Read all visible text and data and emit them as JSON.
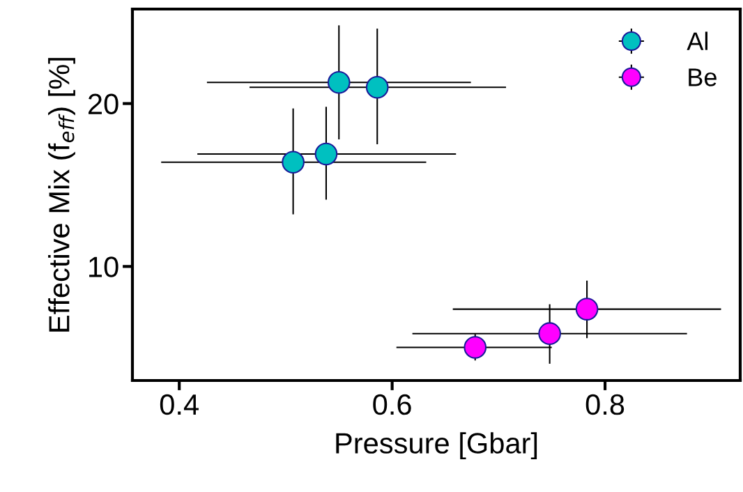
{
  "chart_data": {
    "type": "scatter",
    "xlabel": "Pressure [Gbar]",
    "ylabel": "Effective Mix (f$_{eff}$) [%]",
    "xlim": [
      0.356,
      0.927
    ],
    "ylim": [
      3.0,
      25.8
    ],
    "xticks": [
      0.4,
      0.6,
      0.8
    ],
    "yticks": [
      10,
      20
    ],
    "grid": false,
    "legend": "top right",
    "marker": "circle",
    "series": [
      {
        "name": "Al",
        "color": "#00c0c0",
        "x": [
          0.55,
          0.586,
          0.507,
          0.538
        ],
        "values": [
          21.3,
          21.0,
          16.4,
          16.9
        ],
        "xerrors": [
          [
            0.426,
            0.674
          ],
          [
            0.466,
            0.707
          ],
          [
            0.383,
            0.632
          ],
          [
            0.417,
            0.66
          ]
        ],
        "errors": [
          [
            17.8,
            24.8
          ],
          [
            17.5,
            24.6
          ],
          [
            13.2,
            19.7
          ],
          [
            14.1,
            19.8
          ]
        ]
      },
      {
        "name": "Be",
        "color": "#ff00ff",
        "x": [
          0.678,
          0.748,
          0.783
        ],
        "values": [
          5.03,
          5.88,
          7.38
        ],
        "xerrors": [
          [
            0.604,
            0.75
          ],
          [
            0.619,
            0.877
          ],
          [
            0.657,
            0.909
          ]
        ],
        "errors": [
          [
            4.23,
            5.85
          ],
          [
            4.03,
            7.68
          ],
          [
            5.6,
            9.13
          ]
        ]
      }
    ]
  }
}
